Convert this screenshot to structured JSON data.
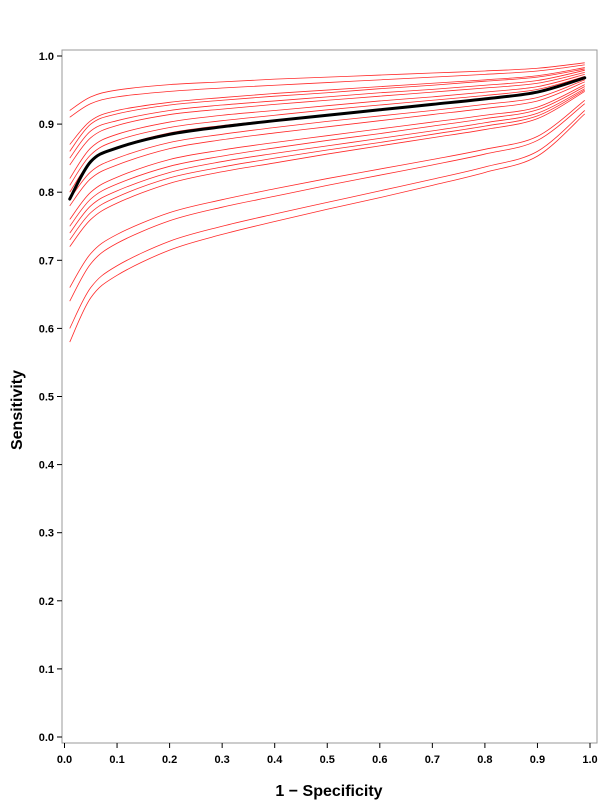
{
  "chart_data": {
    "type": "line",
    "xlabel": "1 − Specificity",
    "ylabel": "Sensitivity",
    "xlim": [
      0,
      1
    ],
    "ylim": [
      0,
      1
    ],
    "x_ticks": [
      "0.0",
      "0.1",
      "0.2",
      "0.3",
      "0.4",
      "0.5",
      "0.6",
      "0.7",
      "0.8",
      "0.9",
      "1.0"
    ],
    "y_ticks": [
      "0.0",
      "0.1",
      "0.2",
      "0.3",
      "0.4",
      "0.5",
      "0.6",
      "0.7",
      "0.8",
      "0.9",
      "1.0"
    ],
    "grid": false,
    "colors": {
      "series": "#ff2a2a",
      "summary": "#000000"
    },
    "x": [
      0.01,
      0.05,
      0.1,
      0.2,
      0.3,
      0.4,
      0.5,
      0.6,
      0.7,
      0.8,
      0.9,
      0.99
    ],
    "series": [
      {
        "values": [
          0.92,
          0.94,
          0.95,
          0.958,
          0.962,
          0.966,
          0.969,
          0.972,
          0.975,
          0.978,
          0.982,
          0.99
        ]
      },
      {
        "values": [
          0.91,
          0.93,
          0.94,
          0.948,
          0.953,
          0.957,
          0.961,
          0.965,
          0.969,
          0.973,
          0.978,
          0.987
        ]
      },
      {
        "values": [
          0.87,
          0.905,
          0.92,
          0.932,
          0.939,
          0.945,
          0.95,
          0.955,
          0.96,
          0.965,
          0.971,
          0.983
        ]
      },
      {
        "values": [
          0.86,
          0.9,
          0.915,
          0.928,
          0.935,
          0.941,
          0.946,
          0.952,
          0.957,
          0.963,
          0.969,
          0.981
        ]
      },
      {
        "values": [
          0.85,
          0.89,
          0.905,
          0.92,
          0.928,
          0.934,
          0.94,
          0.946,
          0.951,
          0.957,
          0.964,
          0.979
        ]
      },
      {
        "values": [
          0.84,
          0.88,
          0.898,
          0.914,
          0.922,
          0.929,
          0.935,
          0.941,
          0.947,
          0.953,
          0.96,
          0.976
        ]
      },
      {
        "values": [
          0.82,
          0.865,
          0.885,
          0.903,
          0.913,
          0.92,
          0.927,
          0.934,
          0.94,
          0.947,
          0.955,
          0.973
        ]
      },
      {
        "values": [
          0.81,
          0.855,
          0.876,
          0.895,
          0.905,
          0.913,
          0.921,
          0.928,
          0.935,
          0.942,
          0.951,
          0.97
        ]
      },
      {
        "values": [
          0.8,
          0.845,
          0.866,
          0.887,
          0.898,
          0.906,
          0.914,
          0.922,
          0.929,
          0.937,
          0.946,
          0.968
        ]
      },
      {
        "values": [
          0.79,
          0.83,
          0.85,
          0.873,
          0.885,
          0.895,
          0.904,
          0.912,
          0.92,
          0.929,
          0.939,
          0.965
        ]
      },
      {
        "values": [
          0.78,
          0.82,
          0.84,
          0.864,
          0.877,
          0.887,
          0.896,
          0.905,
          0.914,
          0.923,
          0.934,
          0.962
        ]
      },
      {
        "values": [
          0.76,
          0.8,
          0.822,
          0.848,
          0.862,
          0.873,
          0.883,
          0.893,
          0.903,
          0.913,
          0.925,
          0.958
        ]
      },
      {
        "values": [
          0.75,
          0.79,
          0.812,
          0.838,
          0.853,
          0.865,
          0.876,
          0.886,
          0.897,
          0.908,
          0.921,
          0.955
        ]
      },
      {
        "values": [
          0.74,
          0.78,
          0.802,
          0.829,
          0.845,
          0.857,
          0.868,
          0.879,
          0.89,
          0.902,
          0.916,
          0.952
        ]
      },
      {
        "values": [
          0.73,
          0.77,
          0.793,
          0.821,
          0.837,
          0.85,
          0.862,
          0.873,
          0.885,
          0.897,
          0.912,
          0.95
        ]
      },
      {
        "values": [
          0.72,
          0.76,
          0.784,
          0.813,
          0.83,
          0.843,
          0.856,
          0.868,
          0.88,
          0.892,
          0.908,
          0.948
        ]
      },
      {
        "values": [
          0.66,
          0.71,
          0.738,
          0.77,
          0.789,
          0.805,
          0.82,
          0.834,
          0.848,
          0.863,
          0.882,
          0.935
        ]
      },
      {
        "values": [
          0.64,
          0.695,
          0.725,
          0.758,
          0.778,
          0.794,
          0.81,
          0.825,
          0.84,
          0.856,
          0.876,
          0.93
        ]
      },
      {
        "values": [
          0.6,
          0.66,
          0.692,
          0.728,
          0.75,
          0.768,
          0.785,
          0.802,
          0.819,
          0.837,
          0.86,
          0.92
        ]
      },
      {
        "values": [
          0.58,
          0.645,
          0.678,
          0.715,
          0.738,
          0.757,
          0.775,
          0.792,
          0.81,
          0.829,
          0.853,
          0.915
        ]
      }
    ],
    "summary_curve": {
      "values": [
        0.79,
        0.845,
        0.865,
        0.885,
        0.896,
        0.905,
        0.913,
        0.921,
        0.929,
        0.937,
        0.947,
        0.968
      ]
    }
  }
}
